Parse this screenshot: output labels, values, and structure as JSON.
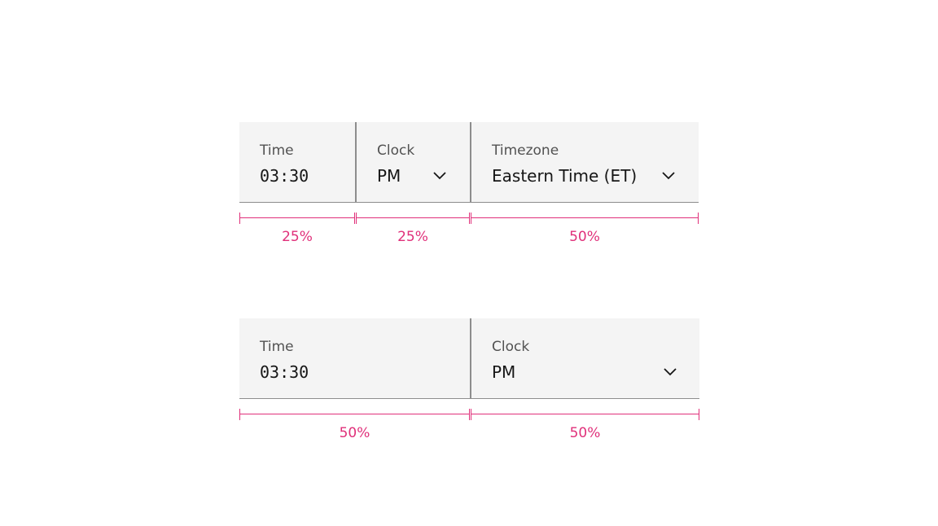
{
  "example1": {
    "fields": [
      {
        "label": "Time",
        "value": "03:30",
        "type": "input"
      },
      {
        "label": "Clock",
        "value": "PM",
        "type": "select",
        "icon": "chevron-down-icon"
      },
      {
        "label": "Timezone",
        "value": "Eastern Time (ET)",
        "type": "select",
        "icon": "chevron-down-icon"
      }
    ],
    "widths": [
      "25%",
      "25%",
      "50%"
    ]
  },
  "example2": {
    "fields": [
      {
        "label": "Time",
        "value": "03:30",
        "type": "input"
      },
      {
        "label": "Clock",
        "value": "PM",
        "type": "select",
        "icon": "chevron-down-icon"
      }
    ],
    "widths": [
      "50%",
      "50%"
    ]
  },
  "colors": {
    "measure": "#e0307a",
    "field_bg": "#f4f4f4",
    "border": "#8d8d8d"
  }
}
